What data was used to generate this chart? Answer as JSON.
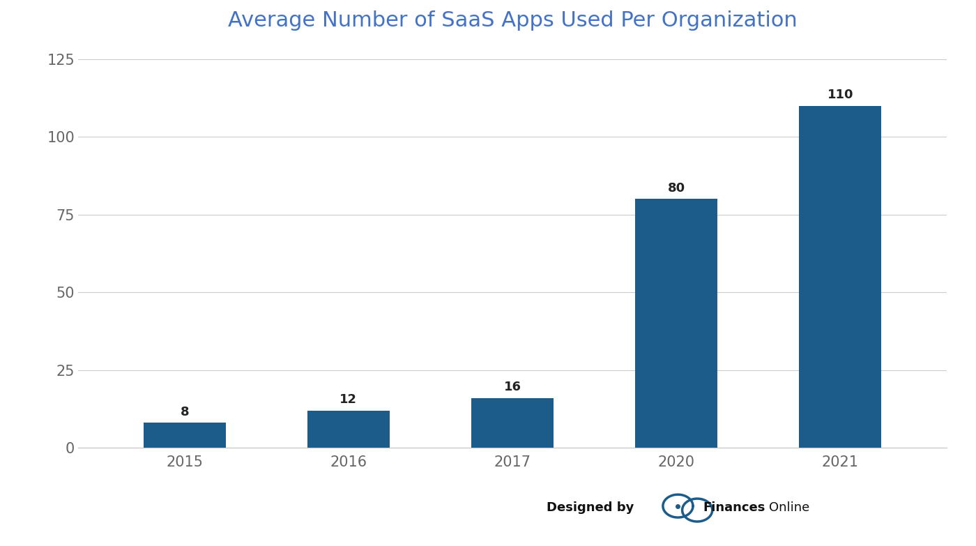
{
  "title": "Average Number of SaaS Apps Used Per Organization",
  "title_color": "#4472C4",
  "title_fontsize": 22,
  "categories": [
    "2015",
    "2016",
    "2017",
    "2020",
    "2021"
  ],
  "values": [
    8,
    12,
    16,
    80,
    110
  ],
  "bar_color": "#1C5C8A",
  "ylim": [
    0,
    130
  ],
  "yticks": [
    0,
    25,
    50,
    75,
    100,
    125
  ],
  "background_color": "#FFFFFF",
  "bar_label_fontsize": 13,
  "bar_label_color": "#222222",
  "tick_label_color": "#666666",
  "tick_label_fontsize": 15,
  "grid_color": "#CCCCCC",
  "watermark_designed_by": "Designed by",
  "watermark_brand_bold": "Finances",
  "watermark_brand_regular": "Online"
}
